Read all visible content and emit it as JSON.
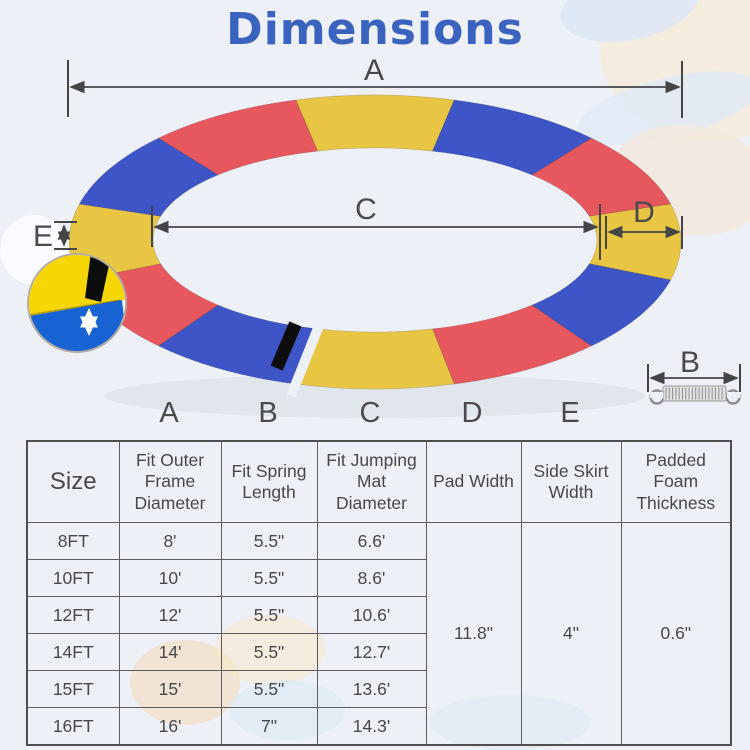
{
  "title": "Dimensions",
  "colors": {
    "title_blue": "#3a63c0",
    "ring_yellow": "#e8c644",
    "ring_blue": "#3d55c6",
    "ring_red": "#e6575e",
    "gap_bg": "#edf0f6",
    "velcro_black": "#0d0d0d",
    "inset_yellow": "#f7d703",
    "inset_blue": "#1763d4",
    "dim_line": "#454548",
    "spring_gray": "#8e8e90"
  },
  "diagram": {
    "labels": {
      "A": "A",
      "B": "B",
      "C": "C",
      "D": "D",
      "E": "E"
    },
    "inset_icon": "pad-thickness-closeup",
    "spring_icon": "spring"
  },
  "column_letters": [
    "A",
    "B",
    "C",
    "D",
    "E"
  ],
  "table": {
    "headers": [
      "Size",
      "Fit Outer Frame Diameter",
      "Fit Spring Length",
      "Fit Jumping Mat Diameter",
      "Pad Width",
      "Side Skirt Width",
      "Padded Foam Thickness"
    ],
    "rows": [
      {
        "size": "8FT",
        "frame": "8'",
        "spring": "5.5\"",
        "mat": "6.6'"
      },
      {
        "size": "10FT",
        "frame": "10'",
        "spring": "5.5\"",
        "mat": "8.6'"
      },
      {
        "size": "12FT",
        "frame": "12'",
        "spring": "5.5\"",
        "mat": "10.6'"
      },
      {
        "size": "14FT",
        "frame": "14'",
        "spring": "5.5\"",
        "mat": "12.7'"
      },
      {
        "size": "15FT",
        "frame": "15'",
        "spring": "5.5\"",
        "mat": "13.6'"
      },
      {
        "size": "16FT",
        "frame": "16'",
        "spring": "7\"",
        "mat": "14.3'"
      }
    ],
    "merged": {
      "pad_width": "11.8\"",
      "side_skirt": "4\"",
      "foam_thickness": "0.6\""
    }
  }
}
